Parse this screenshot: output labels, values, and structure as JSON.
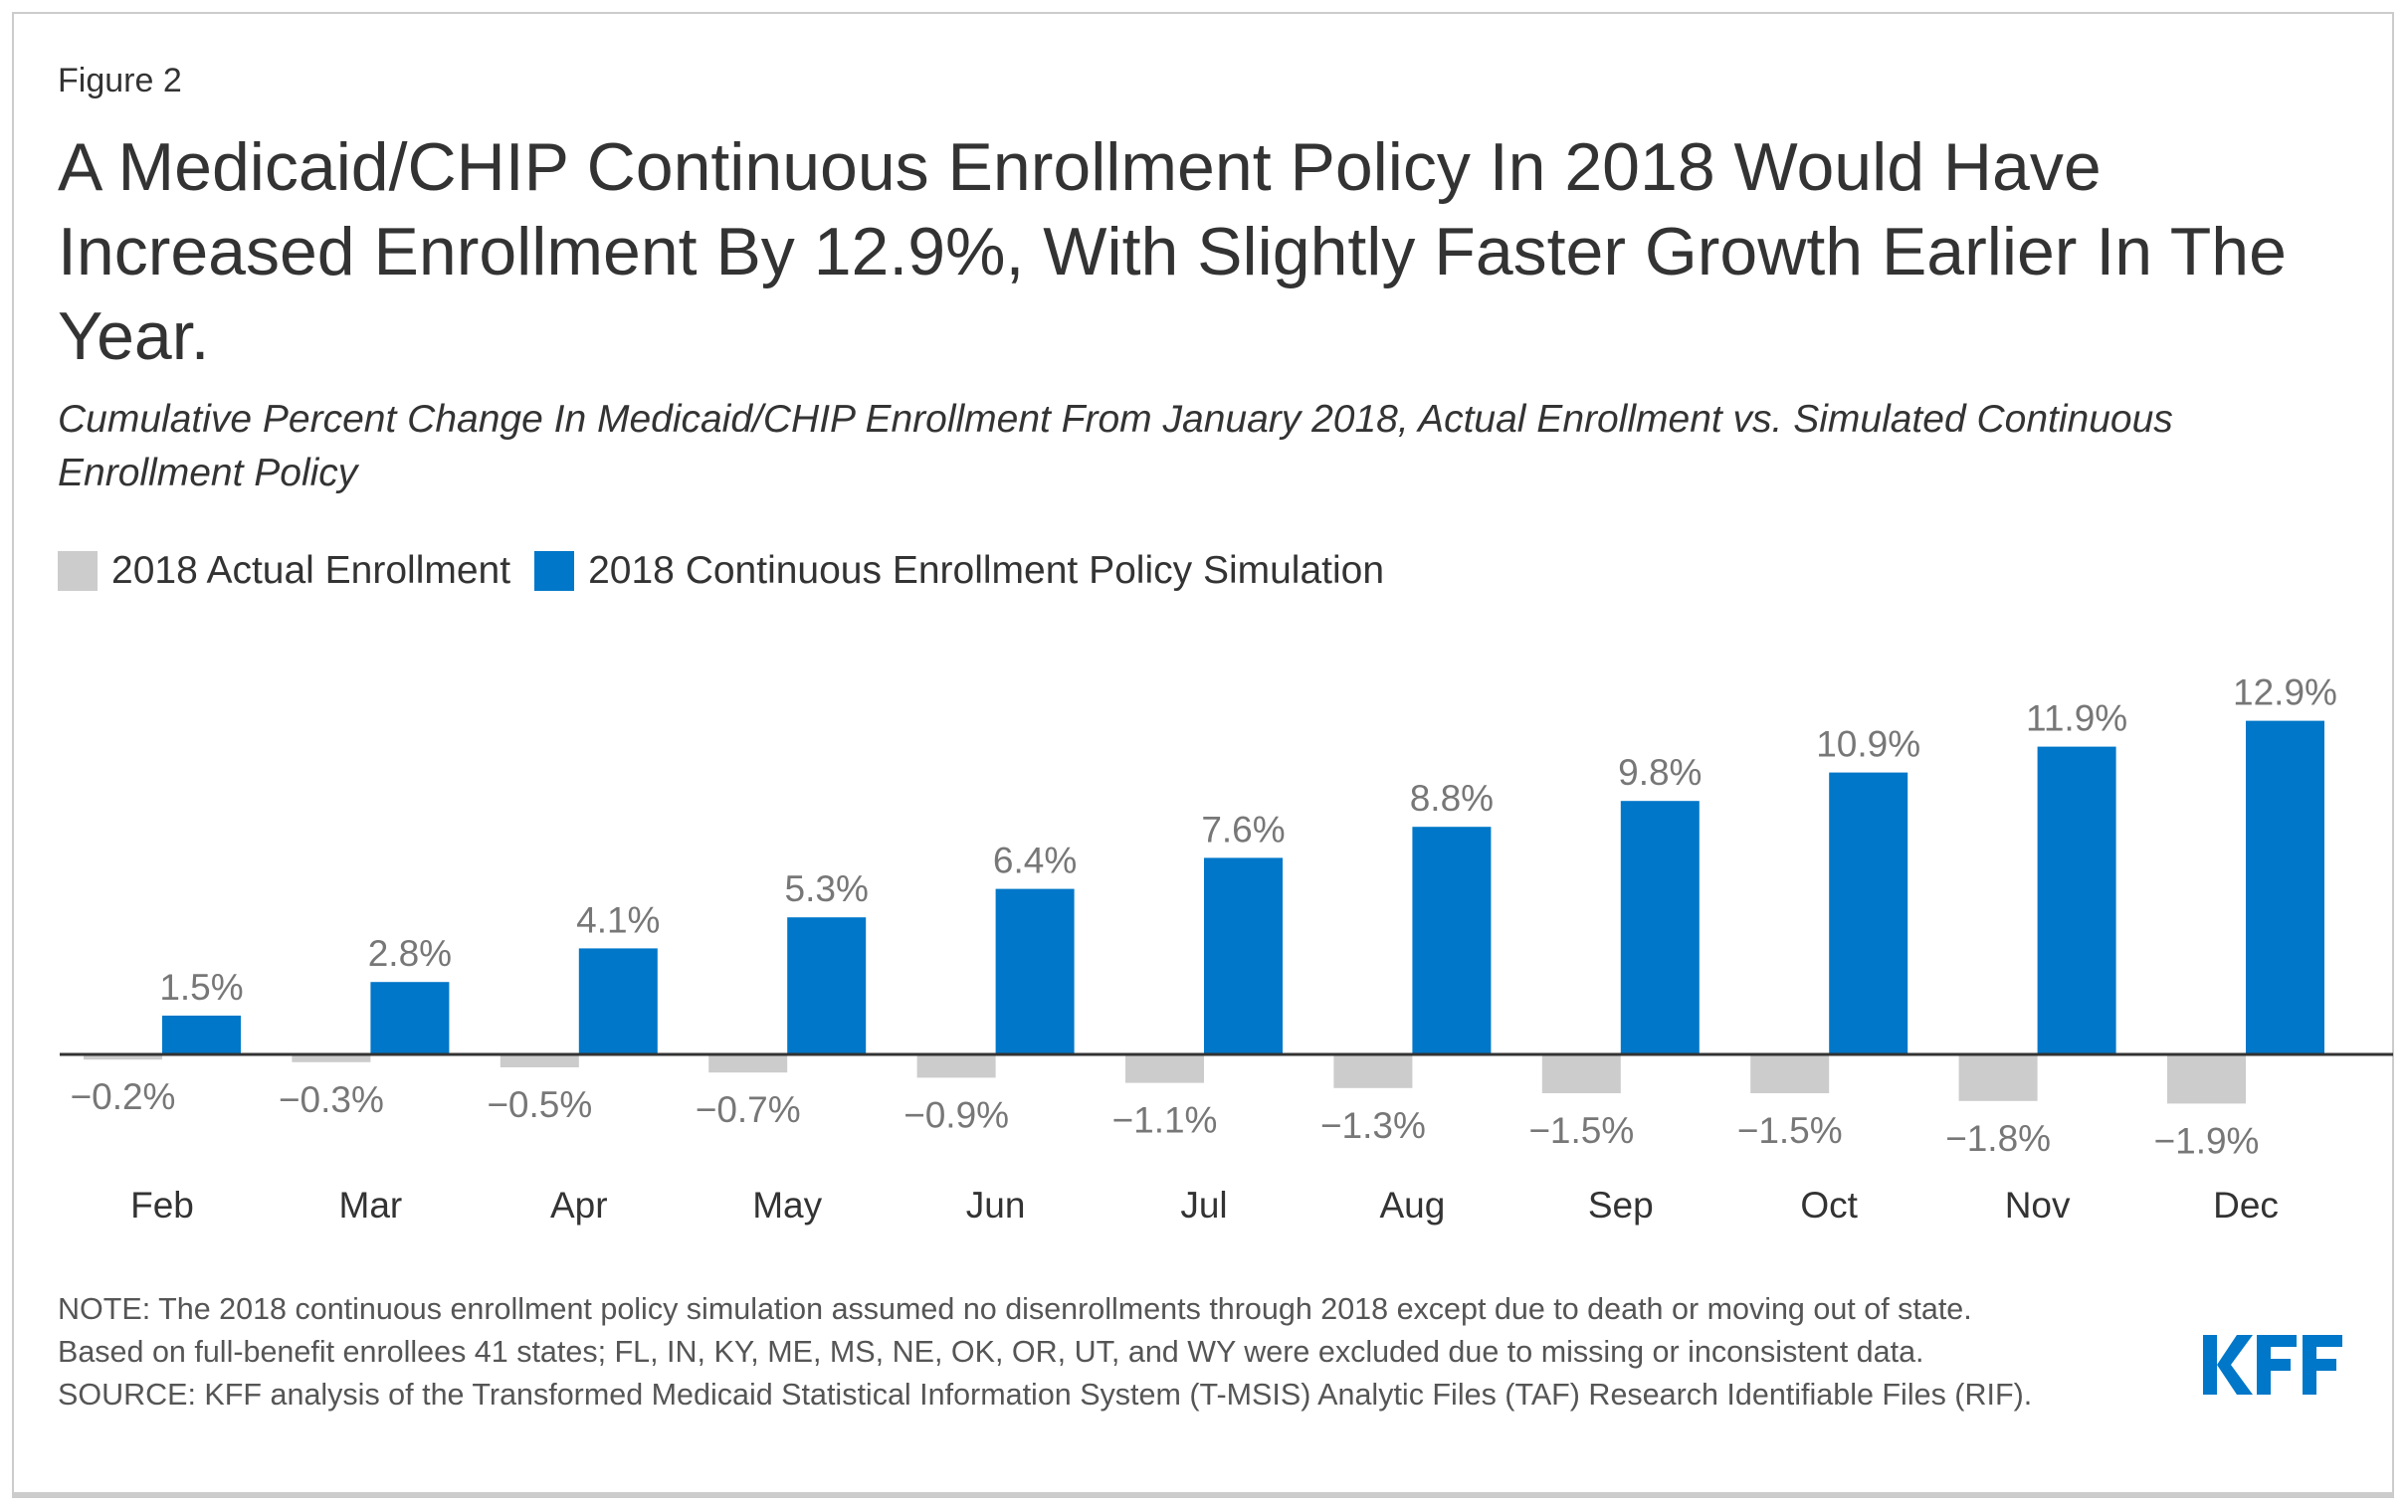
{
  "figure_label": "Figure 2",
  "title": "A Medicaid/CHIP Continuous Enrollment Policy In 2018 Would Have Increased Enrollment By 12.9%, With Slightly Faster Growth Earlier In The Year.",
  "subtitle": "Cumulative Percent Change In Medicaid/CHIP Enrollment From January 2018, Actual Enrollment vs. Simulated Continuous Enrollment Policy",
  "notes": [
    "NOTE: The 2018 continuous enrollment policy simulation assumed no disenrollments through 2018 except due to death or moving out of state.",
    "Based on full-benefit enrollees 41 states; FL, IN, KY, ME, MS, NE, OK, OR, UT, and WY were excluded due to missing or inconsistent data.",
    "SOURCE: KFF analysis of the Transformed Medicaid Statistical Information System (T-MSIS) Analytic Files (TAF) Research Identifiable Files (RIF)."
  ],
  "logo": "KFF",
  "colors": {
    "actual": "#cccccc",
    "simulation": "#0077c8",
    "label": "#777777",
    "logo": "#0077c8"
  },
  "chart_data": {
    "type": "bar",
    "categories": [
      "Feb",
      "Mar",
      "Apr",
      "May",
      "Jun",
      "Jul",
      "Aug",
      "Sep",
      "Oct",
      "Nov",
      "Dec"
    ],
    "series": [
      {
        "name": "2018 Actual Enrollment",
        "values": [
          -0.2,
          -0.3,
          -0.5,
          -0.7,
          -0.9,
          -1.1,
          -1.3,
          -1.5,
          -1.5,
          -1.8,
          -1.9
        ],
        "labels": [
          "−0.2%",
          "−0.3%",
          "−0.5%",
          "−0.7%",
          "−0.9%",
          "−1.1%",
          "−1.3%",
          "−1.5%",
          "−1.5%",
          "−1.8%",
          "−1.9%"
        ]
      },
      {
        "name": "2018 Continuous Enrollment Policy Simulation",
        "values": [
          1.5,
          2.8,
          4.1,
          5.3,
          6.4,
          7.6,
          8.8,
          9.8,
          10.9,
          11.9,
          12.9
        ],
        "labels": [
          "1.5%",
          "2.8%",
          "4.1%",
          "5.3%",
          "6.4%",
          "7.6%",
          "8.8%",
          "9.8%",
          "10.9%",
          "11.9%",
          "12.9%"
        ]
      }
    ],
    "legend_position": "top-left",
    "grid": false,
    "unit": "%"
  }
}
